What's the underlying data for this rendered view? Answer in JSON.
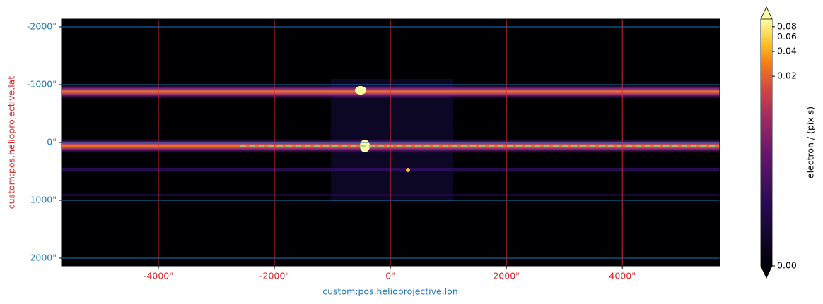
{
  "chart_data": {
    "type": "image",
    "xlabel": "custom:pos.helioprojective.lon",
    "ylabel": "custom:pos.helioprojective.lat",
    "xlim": [
      -5670,
      5680
    ],
    "ylim": [
      -2134,
      2134
    ],
    "y_inverted": true,
    "xticks": [
      {
        "value": -4000,
        "label": "-4000\""
      },
      {
        "value": -2000,
        "label": "-2000\""
      },
      {
        "value": 0,
        "label": "0\""
      },
      {
        "value": 2000,
        "label": "2000\""
      },
      {
        "value": 4000,
        "label": "4000\""
      }
    ],
    "yticks": [
      {
        "value": -2000,
        "label": "-2000\""
      },
      {
        "value": -1000,
        "label": "-1000\""
      },
      {
        "value": 0,
        "label": "0\""
      },
      {
        "value": 1000,
        "label": "1000\""
      },
      {
        "value": 2000,
        "label": "2000\""
      }
    ],
    "x_color": "#d62728",
    "y_color": "#1f77b4",
    "grid": true,
    "colormap": "inferno",
    "colorbar": {
      "label": "electron / (pix s)",
      "norm": "asinh",
      "linear_width": 0.0002,
      "clim": [
        0,
        0.099
      ],
      "extend": "both",
      "ticks": [
        {
          "value": 0,
          "label": "0.00"
        },
        {
          "value": 0.02,
          "label": "0.02"
        },
        {
          "value": 0.04,
          "label": "0.04"
        },
        {
          "value": 0.06,
          "label": "0.06"
        },
        {
          "value": 0.08,
          "label": "0.08"
        }
      ]
    }
  }
}
